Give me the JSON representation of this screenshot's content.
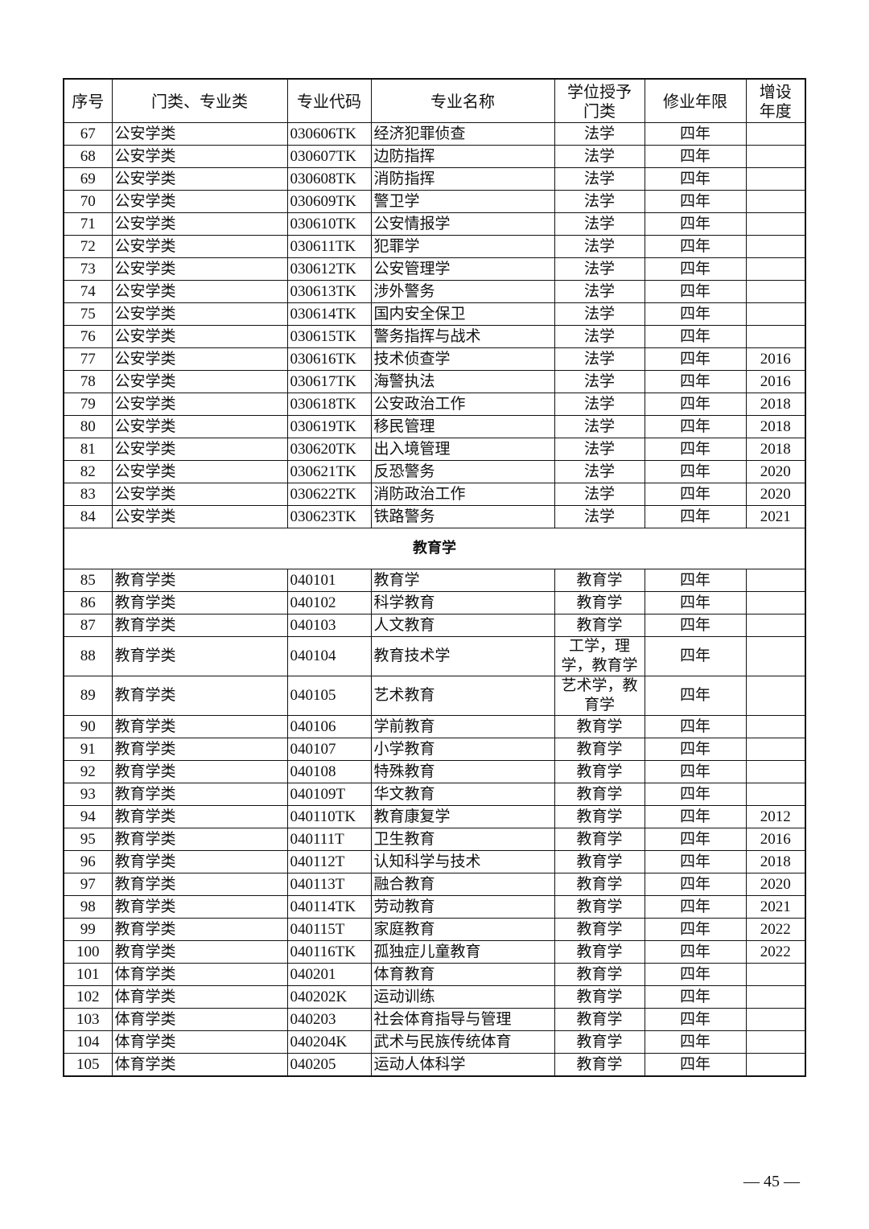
{
  "table": {
    "headers": [
      "序号",
      "门类、专业类",
      "专业代码",
      "专业名称",
      "学位授予门类",
      "修业年限",
      "增设年度"
    ],
    "sections": [
      {
        "title": "",
        "rows": [
          [
            "67",
            "公安学类",
            "030606TK",
            "经济犯罪侦查",
            "法学",
            "四年",
            ""
          ],
          [
            "68",
            "公安学类",
            "030607TK",
            "边防指挥",
            "法学",
            "四年",
            ""
          ],
          [
            "69",
            "公安学类",
            "030608TK",
            "消防指挥",
            "法学",
            "四年",
            ""
          ],
          [
            "70",
            "公安学类",
            "030609TK",
            "警卫学",
            "法学",
            "四年",
            ""
          ],
          [
            "71",
            "公安学类",
            "030610TK",
            "公安情报学",
            "法学",
            "四年",
            ""
          ],
          [
            "72",
            "公安学类",
            "030611TK",
            "犯罪学",
            "法学",
            "四年",
            ""
          ],
          [
            "73",
            "公安学类",
            "030612TK",
            "公安管理学",
            "法学",
            "四年",
            ""
          ],
          [
            "74",
            "公安学类",
            "030613TK",
            "涉外警务",
            "法学",
            "四年",
            ""
          ],
          [
            "75",
            "公安学类",
            "030614TK",
            "国内安全保卫",
            "法学",
            "四年",
            ""
          ],
          [
            "76",
            "公安学类",
            "030615TK",
            "警务指挥与战术",
            "法学",
            "四年",
            ""
          ],
          [
            "77",
            "公安学类",
            "030616TK",
            "技术侦查学",
            "法学",
            "四年",
            "2016"
          ],
          [
            "78",
            "公安学类",
            "030617TK",
            "海警执法",
            "法学",
            "四年",
            "2016"
          ],
          [
            "79",
            "公安学类",
            "030618TK",
            "公安政治工作",
            "法学",
            "四年",
            "2018"
          ],
          [
            "80",
            "公安学类",
            "030619TK",
            "移民管理",
            "法学",
            "四年",
            "2018"
          ],
          [
            "81",
            "公安学类",
            "030620TK",
            "出入境管理",
            "法学",
            "四年",
            "2018"
          ],
          [
            "82",
            "公安学类",
            "030621TK",
            "反恐警务",
            "法学",
            "四年",
            "2020"
          ],
          [
            "83",
            "公安学类",
            "030622TK",
            "消防政治工作",
            "法学",
            "四年",
            "2020"
          ],
          [
            "84",
            "公安学类",
            "030623TK",
            "铁路警务",
            "法学",
            "四年",
            "2021"
          ]
        ]
      },
      {
        "title": "教育学",
        "rows": [
          [
            "85",
            "教育学类",
            "040101",
            "教育学",
            "教育学",
            "四年",
            ""
          ],
          [
            "86",
            "教育学类",
            "040102",
            "科学教育",
            "教育学",
            "四年",
            ""
          ],
          [
            "87",
            "教育学类",
            "040103",
            "人文教育",
            "教育学",
            "四年",
            ""
          ],
          [
            "88",
            "教育学类",
            "040104",
            "教育技术学",
            "工学，理学，教育学",
            "四年",
            ""
          ],
          [
            "89",
            "教育学类",
            "040105",
            "艺术教育",
            "艺术学，教育学",
            "四年",
            ""
          ],
          [
            "90",
            "教育学类",
            "040106",
            "学前教育",
            "教育学",
            "四年",
            ""
          ],
          [
            "91",
            "教育学类",
            "040107",
            "小学教育",
            "教育学",
            "四年",
            ""
          ],
          [
            "92",
            "教育学类",
            "040108",
            "特殊教育",
            "教育学",
            "四年",
            ""
          ],
          [
            "93",
            "教育学类",
            "040109T",
            "华文教育",
            "教育学",
            "四年",
            ""
          ],
          [
            "94",
            "教育学类",
            "040110TK",
            "教育康复学",
            "教育学",
            "四年",
            "2012"
          ],
          [
            "95",
            "教育学类",
            "040111T",
            "卫生教育",
            "教育学",
            "四年",
            "2016"
          ],
          [
            "96",
            "教育学类",
            "040112T",
            "认知科学与技术",
            "教育学",
            "四年",
            "2018"
          ],
          [
            "97",
            "教育学类",
            "040113T",
            "融合教育",
            "教育学",
            "四年",
            "2020"
          ],
          [
            "98",
            "教育学类",
            "040114TK",
            "劳动教育",
            "教育学",
            "四年",
            "2021"
          ],
          [
            "99",
            "教育学类",
            "040115T",
            "家庭教育",
            "教育学",
            "四年",
            "2022"
          ],
          [
            "100",
            "教育学类",
            "040116TK",
            "孤独症儿童教育",
            "教育学",
            "四年",
            "2022"
          ],
          [
            "101",
            "体育学类",
            "040201",
            "体育教育",
            "教育学",
            "四年",
            ""
          ],
          [
            "102",
            "体育学类",
            "040202K",
            "运动训练",
            "教育学",
            "四年",
            ""
          ],
          [
            "103",
            "体育学类",
            "040203",
            "社会体育指导与管理",
            "教育学",
            "四年",
            ""
          ],
          [
            "104",
            "体育学类",
            "040204K",
            "武术与民族传统体育",
            "教育学",
            "四年",
            ""
          ],
          [
            "105",
            "体育学类",
            "040205",
            "运动人体科学",
            "教育学",
            "四年",
            ""
          ]
        ]
      }
    ]
  },
  "footer": {
    "page_number": "— 45 —"
  }
}
